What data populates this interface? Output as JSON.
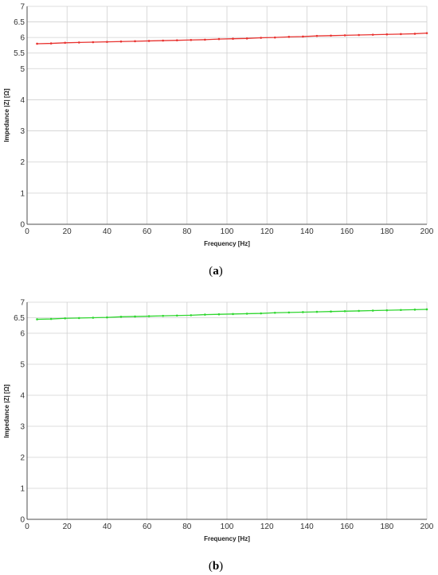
{
  "colors": {
    "series_a": "#e8322f",
    "series_b": "#2fd62f",
    "grid": "#d0d0d0",
    "axis": "#4d4d4d"
  },
  "chart_data": [
    {
      "type": "line",
      "caption_open": "(",
      "caption_letter": "a",
      "caption_close": ")",
      "xlabel": "Frequency [Hz]",
      "ylabel": "Impedance |Z| [Ω]",
      "xlim": [
        0,
        200
      ],
      "ylim": [
        0,
        7
      ],
      "xticks": [
        0,
        20,
        40,
        60,
        80,
        100,
        120,
        140,
        160,
        180,
        200
      ],
      "yticks": [
        0,
        1,
        2,
        3,
        4,
        5,
        5.5,
        6,
        6.5,
        7
      ],
      "grid": true,
      "series": [
        {
          "color": "#e8322f",
          "x": [
            5,
            12,
            19,
            26,
            33,
            40,
            47,
            54,
            61,
            68,
            75,
            82,
            89,
            96,
            103,
            110,
            117,
            124,
            131,
            138,
            145,
            152,
            159,
            166,
            173,
            180,
            187,
            194,
            200
          ],
          "y": [
            5.8,
            5.81,
            5.83,
            5.84,
            5.85,
            5.86,
            5.87,
            5.88,
            5.89,
            5.9,
            5.91,
            5.92,
            5.93,
            5.95,
            5.96,
            5.97,
            5.99,
            6.0,
            6.02,
            6.03,
            6.05,
            6.06,
            6.07,
            6.08,
            6.09,
            6.1,
            6.11,
            6.12,
            6.14
          ]
        }
      ]
    },
    {
      "type": "line",
      "caption_open": "(",
      "caption_letter": "b",
      "caption_close": ")",
      "xlabel": "Frequency [Hz]",
      "ylabel": "Impedance |Z| [Ω]",
      "xlim": [
        0,
        200
      ],
      "ylim": [
        0,
        7
      ],
      "xticks": [
        0,
        20,
        40,
        60,
        80,
        100,
        120,
        140,
        160,
        180,
        200
      ],
      "yticks": [
        0,
        1,
        2,
        3,
        4,
        5,
        6,
        6.5,
        7
      ],
      "grid": true,
      "series": [
        {
          "color": "#2fd62f",
          "x": [
            5,
            12,
            19,
            26,
            33,
            40,
            47,
            54,
            61,
            68,
            75,
            82,
            89,
            96,
            103,
            110,
            117,
            124,
            131,
            138,
            145,
            152,
            159,
            166,
            173,
            180,
            187,
            194,
            200
          ],
          "y": [
            6.45,
            6.46,
            6.48,
            6.49,
            6.5,
            6.51,
            6.53,
            6.54,
            6.55,
            6.56,
            6.57,
            6.58,
            6.6,
            6.61,
            6.62,
            6.63,
            6.64,
            6.66,
            6.67,
            6.68,
            6.69,
            6.7,
            6.71,
            6.72,
            6.73,
            6.74,
            6.75,
            6.76,
            6.77
          ]
        }
      ]
    }
  ]
}
